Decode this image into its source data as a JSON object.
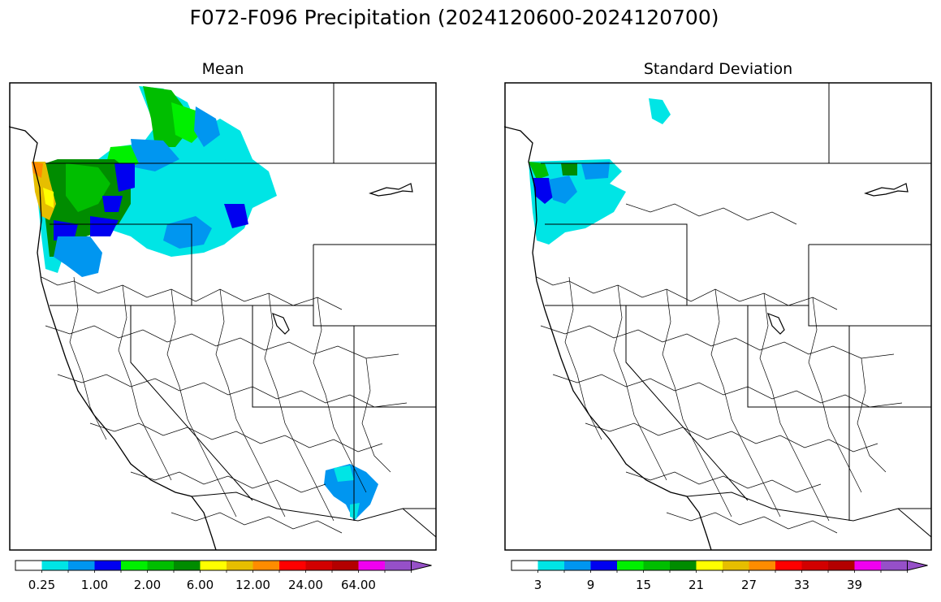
{
  "title": "F072-F096 Precipitation (2024120600-2024120700)",
  "panels": {
    "mean": {
      "title": "Mean",
      "colorbar_ticks": [
        "0.25",
        "1.00",
        "2.00",
        "6.00",
        "12.00",
        "24.00",
        "64.00"
      ]
    },
    "std": {
      "title": "Standard Deviation",
      "colorbar_ticks": [
        "3",
        "9",
        "15",
        "21",
        "27",
        "33",
        "39"
      ]
    }
  },
  "colorbar_colors": [
    "#ffffff",
    "#00e5e5",
    "#0096f0",
    "#0000f0",
    "#00f000",
    "#00be00",
    "#008c00",
    "#ffff00",
    "#e6be00",
    "#ff8c00",
    "#ff0000",
    "#d20000",
    "#b40000",
    "#f000f0",
    "#9650c8"
  ],
  "colors": {
    "cyan": "#00e5e5",
    "light_blue": "#0096f0",
    "blue": "#0000f0",
    "bright_green": "#00f000",
    "green": "#00be00",
    "dark_green": "#008c00",
    "yellow": "#ffff00",
    "gold": "#e6be00",
    "orange": "#ff8c00"
  }
}
